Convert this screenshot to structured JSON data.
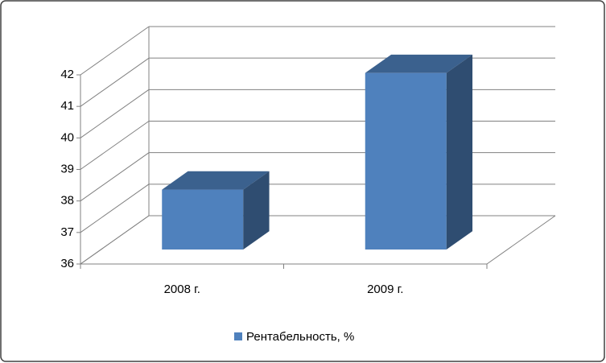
{
  "chart_data": {
    "type": "bar3d",
    "categories": [
      "2008 г.",
      "2009 г."
    ],
    "series": [
      {
        "name": "Рентабельность, %",
        "color": "#4f81bd",
        "values": [
          37.9,
          41.6
        ]
      }
    ],
    "ylim": [
      36,
      42
    ],
    "yticks": [
      36,
      37,
      38,
      39,
      40,
      41,
      42
    ],
    "grid": true,
    "legend": "bottom"
  }
}
